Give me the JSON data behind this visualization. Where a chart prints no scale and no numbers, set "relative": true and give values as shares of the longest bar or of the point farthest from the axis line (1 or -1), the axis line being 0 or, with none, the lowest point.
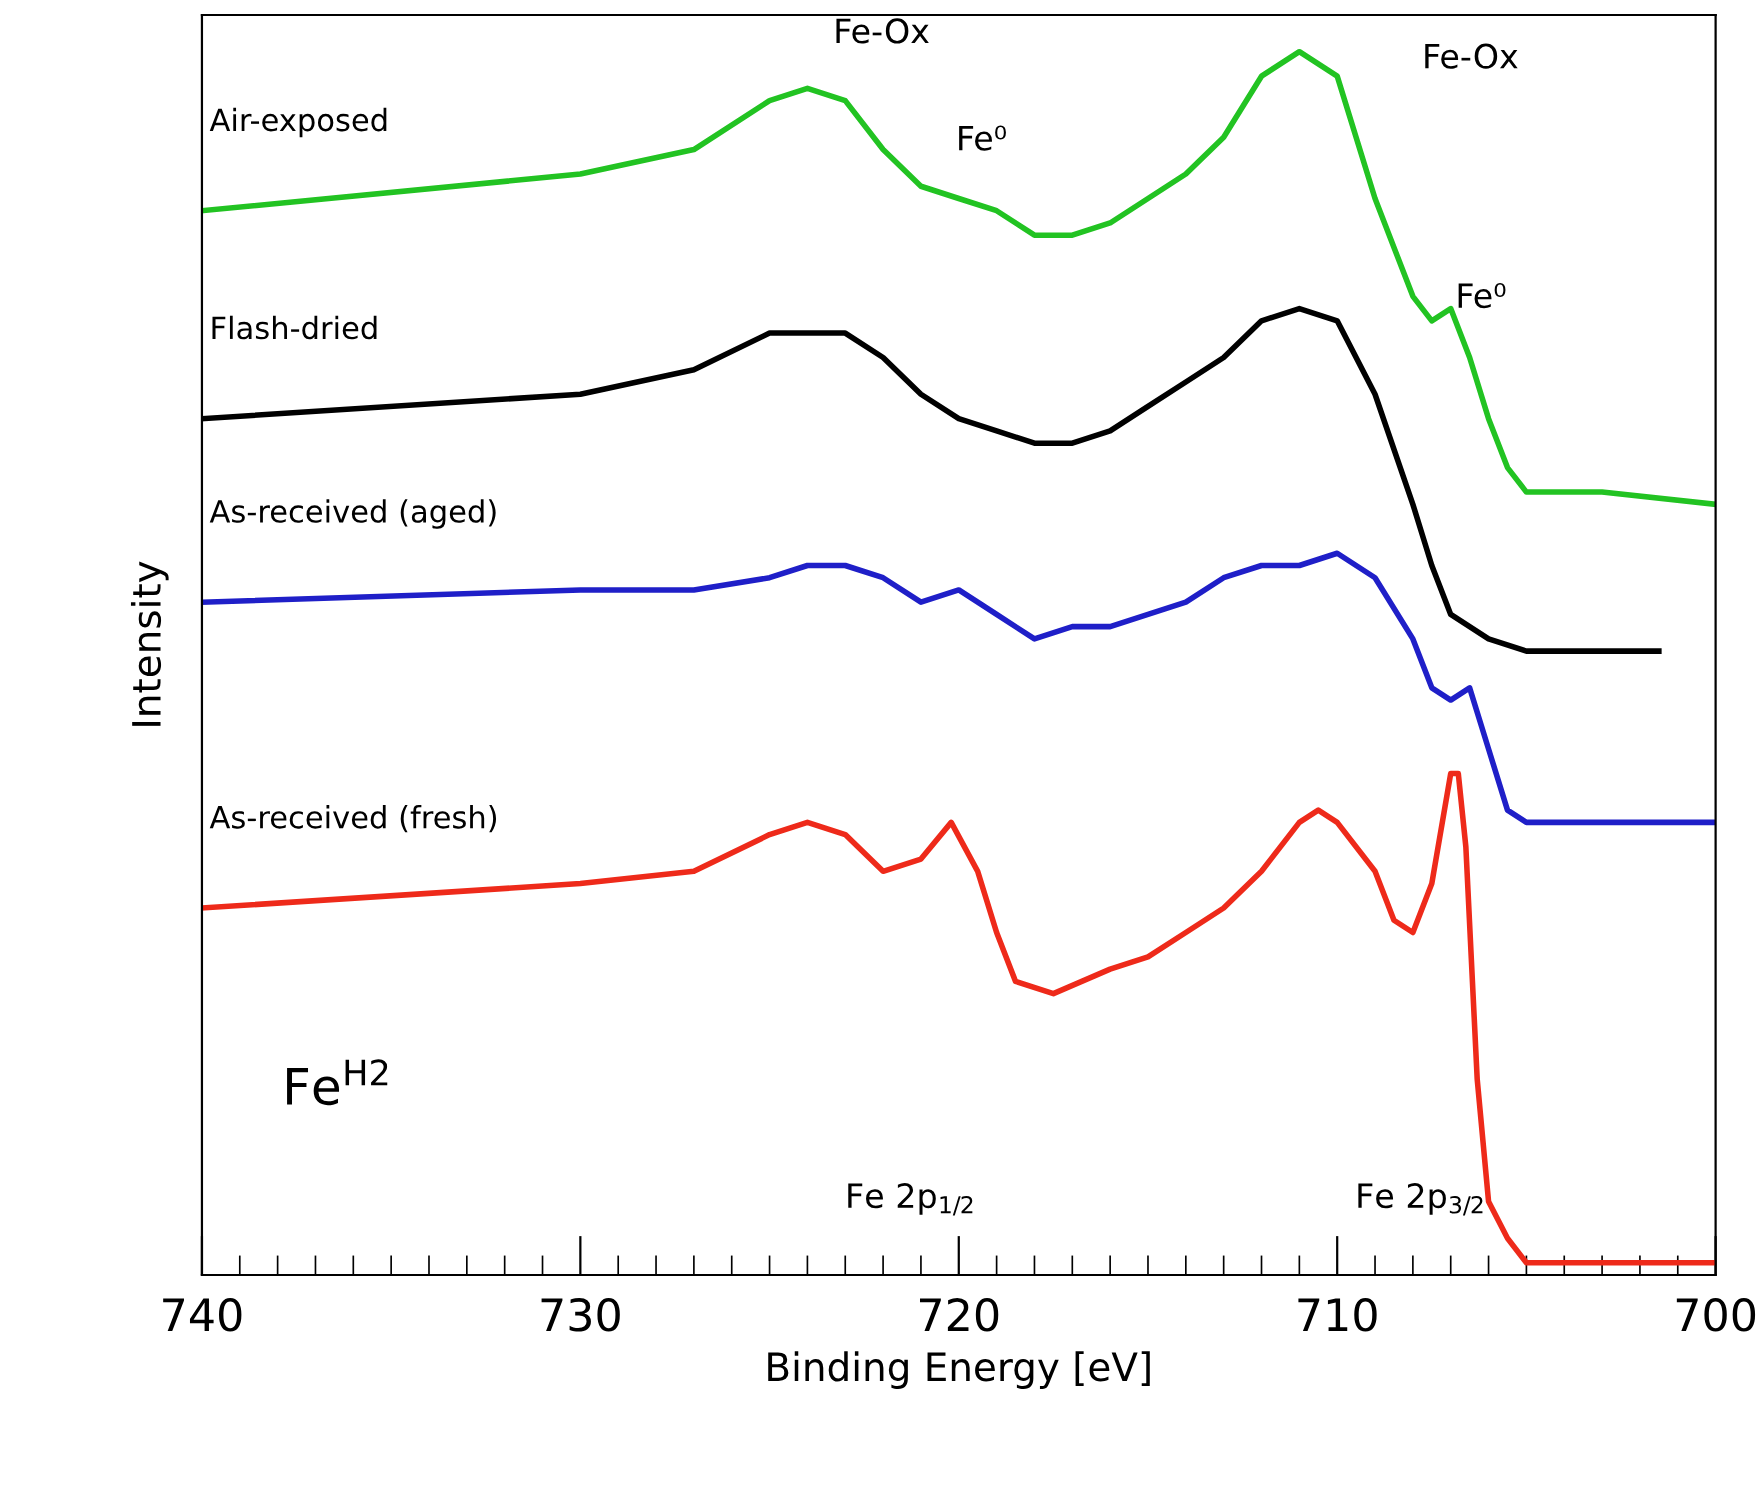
{
  "chart_data": {
    "type": "line",
    "relative": true,
    "xlabel": "Binding Energy [eV]",
    "ylabel": "Intensity",
    "xlim": [
      740,
      700
    ],
    "xticks": [
      740,
      {
        "value": 739,
        "label": null
      },
      {
        "value": 738,
        "label": null
      },
      {
        "value": 737,
        "label": null
      },
      {
        "value": 736,
        "label": null
      },
      {
        "value": 735,
        "label": null
      },
      {
        "value": 734,
        "label": null
      },
      {
        "value": 733,
        "label": null
      },
      {
        "value": 732,
        "label": null
      },
      {
        "value": 731,
        "label": null
      },
      730,
      {
        "value": 729,
        "label": null
      },
      {
        "value": 728,
        "label": null
      },
      {
        "value": 727,
        "label": null
      },
      {
        "value": 726,
        "label": null
      },
      {
        "value": 725,
        "label": null
      },
      {
        "value": 724,
        "label": null
      },
      {
        "value": 723,
        "label": null
      },
      {
        "value": 722,
        "label": null
      },
      {
        "value": 721,
        "label": null
      },
      720,
      {
        "value": 719,
        "label": null
      },
      {
        "value": 718,
        "label": null
      },
      {
        "value": 717,
        "label": null
      },
      {
        "value": 716,
        "label": null
      },
      {
        "value": 715,
        "label": null
      },
      {
        "value": 714,
        "label": null
      },
      {
        "value": 713,
        "label": null
      },
      {
        "value": 712,
        "label": null
      },
      {
        "value": 711,
        "label": null
      },
      710,
      {
        "value": 709,
        "label": null
      },
      {
        "value": 708,
        "label": null
      },
      {
        "value": 707,
        "label": null
      },
      {
        "value": 706,
        "label": null
      },
      {
        "value": 705,
        "label": null
      },
      {
        "value": 704,
        "label": null
      },
      {
        "value": 703,
        "label": null
      },
      {
        "value": 702,
        "label": null
      },
      {
        "value": 701,
        "label": null
      },
      700
    ],
    "tick_labels": "x",
    "grid": false,
    "legend": false,
    "marker": "none",
    "line_style": "solid",
    "series": [
      {
        "name": "Air-exposed",
        "color": "#22c322",
        "x": [
          740,
          730,
          727,
          725,
          724,
          723,
          722,
          721,
          720,
          719,
          718,
          717,
          716,
          715,
          714,
          713,
          712,
          711,
          710,
          709,
          708,
          707.5,
          707,
          706.5,
          706,
          705.5,
          705,
          703,
          700
        ],
        "values": [
          0.87,
          0.9,
          0.92,
          0.96,
          0.97,
          0.96,
          0.92,
          0.89,
          0.88,
          0.87,
          0.85,
          0.85,
          0.86,
          0.88,
          0.9,
          0.93,
          0.98,
          1.0,
          0.98,
          0.88,
          0.8,
          0.78,
          0.79,
          0.75,
          0.7,
          0.66,
          0.64,
          0.64,
          0.63
        ]
      },
      {
        "name": "Flash-dried",
        "color": "#000000",
        "x": [
          740,
          730,
          727,
          725,
          724,
          723,
          722,
          721,
          720,
          719,
          718,
          717,
          716,
          715,
          714,
          713,
          712,
          711,
          710,
          709,
          708,
          707.5,
          707,
          706,
          705,
          703,
          701.5
        ],
        "values": [
          0.7,
          0.72,
          0.74,
          0.77,
          0.77,
          0.77,
          0.75,
          0.72,
          0.7,
          0.69,
          0.68,
          0.68,
          0.69,
          0.71,
          0.73,
          0.75,
          0.78,
          0.79,
          0.78,
          0.72,
          0.63,
          0.58,
          0.54,
          0.52,
          0.51,
          0.51,
          0.51
        ]
      },
      {
        "name": "As-received (aged)",
        "color": "#1f1fc8",
        "x": [
          740,
          730,
          727,
          725,
          724,
          723,
          722,
          721,
          720,
          719,
          718,
          717,
          716,
          715,
          714,
          713,
          712,
          711,
          710,
          709,
          708,
          707.5,
          707,
          706.5,
          706,
          705.5,
          705,
          700
        ],
        "values": [
          0.55,
          0.56,
          0.56,
          0.57,
          0.58,
          0.58,
          0.57,
          0.55,
          0.56,
          0.54,
          0.52,
          0.53,
          0.53,
          0.54,
          0.55,
          0.57,
          0.58,
          0.58,
          0.59,
          0.57,
          0.52,
          0.48,
          0.47,
          0.48,
          0.43,
          0.38,
          0.37,
          0.37
        ]
      },
      {
        "name": "As-received (fresh)",
        "color": "#ee2a1a",
        "x": [
          740,
          730,
          727,
          725,
          724,
          723,
          722,
          721,
          720.2,
          719.5,
          719,
          718.5,
          717.5,
          716,
          715,
          714,
          713,
          712,
          711,
          710.5,
          710,
          709,
          708.5,
          708,
          707.5,
          707,
          706.8,
          706.6,
          706.3,
          706,
          705.5,
          705,
          703,
          700
        ],
        "values": [
          0.3,
          0.32,
          0.33,
          0.36,
          0.37,
          0.36,
          0.33,
          0.34,
          0.37,
          0.33,
          0.28,
          0.24,
          0.23,
          0.25,
          0.26,
          0.28,
          0.3,
          0.33,
          0.37,
          0.38,
          0.37,
          0.33,
          0.29,
          0.28,
          0.32,
          0.41,
          0.41,
          0.35,
          0.16,
          0.06,
          0.03,
          0.01,
          0.01,
          0.01
        ]
      }
    ],
    "annotations": [
      "Fe-Ox",
      "Fe⁰",
      "Fe-Ox",
      "Fe⁰",
      "Fe 2p$_{1/2}$",
      "Fe 2p$_{3/2}$",
      "Fe$^{H2}$"
    ]
  }
}
